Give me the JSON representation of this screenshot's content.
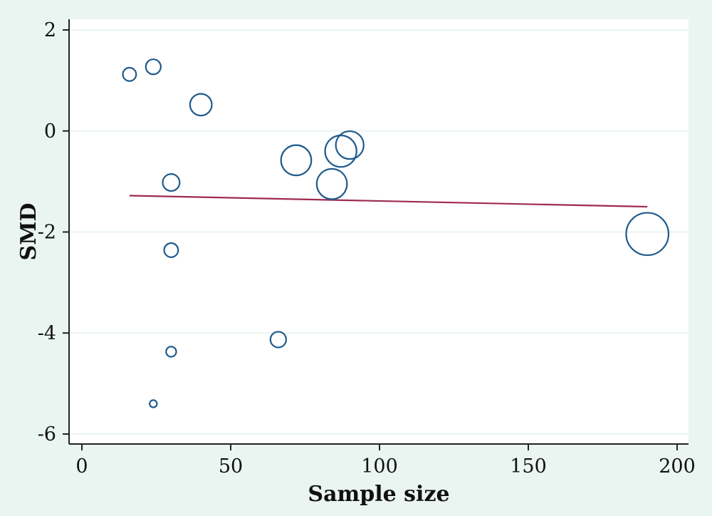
{
  "chart_data": {
    "type": "scatter",
    "title": "",
    "xlabel": "Sample size",
    "ylabel": "SMD",
    "xlim": [
      0,
      200
    ],
    "ylim": [
      -6,
      2
    ],
    "xticks": [
      0,
      50,
      100,
      150,
      200
    ],
    "yticks": [
      2,
      0,
      -2,
      -4,
      -6
    ],
    "grid": true,
    "legend": "none",
    "colors": {
      "background": "#eaf5f1",
      "plot_area": "#ffffff",
      "gridline": "#eaf5f1",
      "marker": "#1f5a8c",
      "fit_line": "#9e2a52"
    },
    "series": [
      {
        "points": [
          {
            "x": 16,
            "y": 1.12,
            "weight": 0.55
          },
          {
            "x": 24,
            "y": 1.27,
            "weight": 0.62
          },
          {
            "x": 40,
            "y": 0.52,
            "weight": 0.9
          },
          {
            "x": 30,
            "y": -1.02,
            "weight": 0.7
          },
          {
            "x": 30,
            "y": -2.36,
            "weight": 0.58
          },
          {
            "x": 30,
            "y": -4.37,
            "weight": 0.42
          },
          {
            "x": 24,
            "y": -5.4,
            "weight": 0.3
          },
          {
            "x": 66,
            "y": -4.13,
            "weight": 0.65
          },
          {
            "x": 72,
            "y": -0.58,
            "weight": 1.25
          },
          {
            "x": 84,
            "y": -1.05,
            "weight": 1.25
          },
          {
            "x": 87,
            "y": -0.4,
            "weight": 1.3
          },
          {
            "x": 90,
            "y": -0.28,
            "weight": 1.15
          },
          {
            "x": 190,
            "y": -2.04,
            "weight": 1.75
          }
        ]
      }
    ],
    "fit_line": {
      "x": [
        16,
        190
      ],
      "y": [
        -1.28,
        -1.5
      ]
    }
  }
}
